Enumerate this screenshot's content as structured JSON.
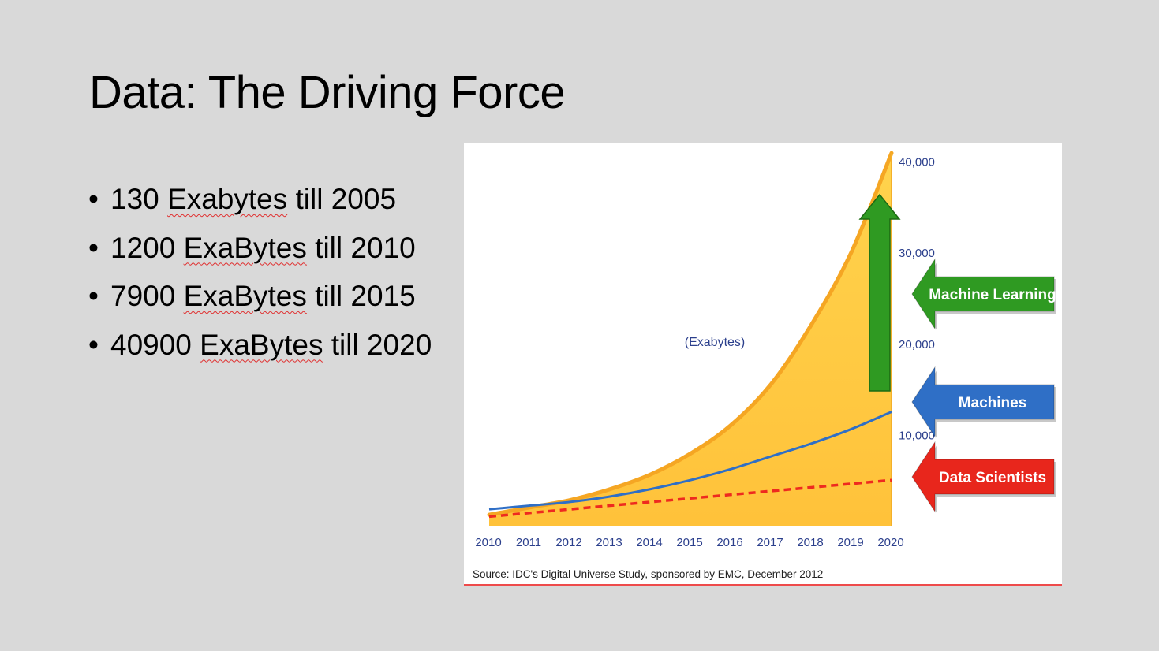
{
  "slide": {
    "title": "Data: The Driving Force",
    "bullets": [
      {
        "num": "130",
        "unit": "Exabytes",
        "rest": "till 2005"
      },
      {
        "num": "1200",
        "unit": "ExaBytes",
        "rest": "till 2010"
      },
      {
        "num": "7900",
        "unit": "ExaBytes",
        "rest": "till 2015"
      },
      {
        "num": "40900",
        "unit": "ExaBytes",
        "rest": "till 2020"
      }
    ]
  },
  "chart_data": {
    "type": "area",
    "x": [
      2010,
      2011,
      2012,
      2013,
      2014,
      2015,
      2016,
      2017,
      2018,
      2019,
      2020
    ],
    "x_tick_labels": [
      "2010",
      "2011",
      "2012",
      "2013",
      "2014",
      "2015",
      "2016",
      "2017",
      "2018",
      "2019",
      "2020"
    ],
    "y_tick_labels": [
      "10,000",
      "20,000",
      "30,000",
      "40,000"
    ],
    "y_ticks": [
      10000,
      20000,
      30000,
      40000
    ],
    "ylim": [
      0,
      41000
    ],
    "ylabel": "(Exabytes)",
    "series": [
      {
        "role": "total",
        "values": [
          1200,
          2000,
          2800,
          4000,
          5600,
          7900,
          11000,
          15500,
          22000,
          30000,
          40900
        ],
        "color": "#ffc83d"
      },
      {
        "role": "machines",
        "values": [
          1800,
          2200,
          2600,
          3200,
          4000,
          5000,
          6200,
          7600,
          9000,
          10600,
          12500
        ],
        "color": "#2f6fc6"
      },
      {
        "role": "data-scientists",
        "values": [
          1000,
          1400,
          1800,
          2200,
          2600,
          3000,
          3400,
          3800,
          4200,
          4600,
          5000
        ],
        "color": "#ee2a1f"
      }
    ],
    "arrows": [
      {
        "label": "Machine Learning",
        "color": "#2f9a22"
      },
      {
        "label": "Machines",
        "color": "#2f6fc6"
      },
      {
        "label": "Data Scientists",
        "color": "#e8261c"
      }
    ],
    "source": "Source: IDC's Digital Universe Study, sponsored by EMC, December 2012",
    "grid": false
  }
}
